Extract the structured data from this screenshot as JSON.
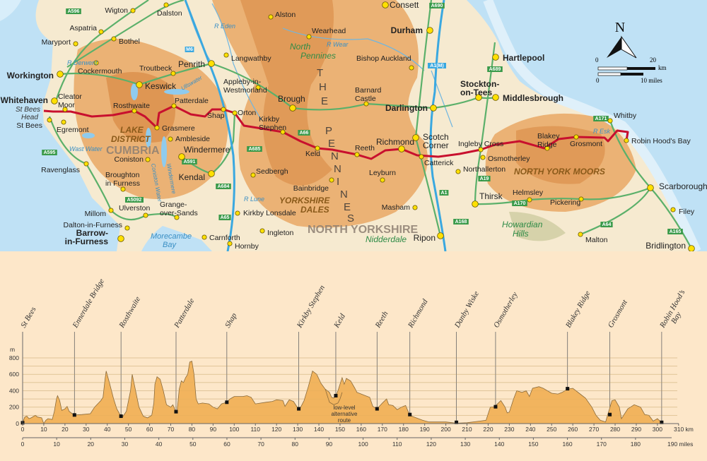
{
  "map": {
    "towns": [
      {
        "name": "Wigton"
      },
      {
        "name": "Dalston"
      },
      {
        "name": "Aspatria"
      },
      {
        "name": "Bothel"
      },
      {
        "name": "Maryport"
      },
      {
        "name": "Cockermouth"
      },
      {
        "name": "Workington",
        "bold": true
      },
      {
        "name": "Troutbeck"
      },
      {
        "name": "Penrith"
      },
      {
        "name": "Langwathby"
      },
      {
        "name": "Keswick"
      },
      {
        "name": "Whitehaven",
        "bold": true
      },
      {
        "name": "Cleator Moor"
      },
      {
        "name": "Rosthwaite"
      },
      {
        "name": "Patterdale"
      },
      {
        "name": "Shap"
      },
      {
        "name": "Orton"
      },
      {
        "name": "St Bees"
      },
      {
        "name": "Egremont"
      },
      {
        "name": "Grasmere"
      },
      {
        "name": "Ambleside"
      },
      {
        "name": "Windermere"
      },
      {
        "name": "Coniston"
      },
      {
        "name": "Ravenglass"
      },
      {
        "name": "Broughton in Furness"
      },
      {
        "name": "Kendal"
      },
      {
        "name": "Millom"
      },
      {
        "name": "Ulverston"
      },
      {
        "name": "Grange-over-Sands"
      },
      {
        "name": "Dalton-in-Furness"
      },
      {
        "name": "Barrow-in-Furness",
        "bold": true
      },
      {
        "name": "Carnforth"
      },
      {
        "name": "Hornby"
      },
      {
        "name": "Alston"
      },
      {
        "name": "Wearhead"
      },
      {
        "name": "Consett"
      },
      {
        "name": "Durham",
        "bold": true
      },
      {
        "name": "Bishop Auckland"
      },
      {
        "name": "Appleby-in-Westmorland"
      },
      {
        "name": "Brough"
      },
      {
        "name": "Barnard Castle"
      },
      {
        "name": "Darlington",
        "bold": true
      },
      {
        "name": "Stockton-on-Tees",
        "bold": true
      },
      {
        "name": "Hartlepool",
        "bold": true
      },
      {
        "name": "Middlesbrough",
        "bold": true
      },
      {
        "name": "Kirkby Stephen"
      },
      {
        "name": "Keld"
      },
      {
        "name": "Reeth"
      },
      {
        "name": "Richmond"
      },
      {
        "name": "Scotch Corner"
      },
      {
        "name": "Catterick"
      },
      {
        "name": "Ingleby Cross"
      },
      {
        "name": "Osmotherley"
      },
      {
        "name": "Northallerton"
      },
      {
        "name": "Leyburn"
      },
      {
        "name": "Sedbergh"
      },
      {
        "name": "Bainbridge"
      },
      {
        "name": "Kirkby Lonsdale"
      },
      {
        "name": "Ingleton"
      },
      {
        "name": "Masham"
      },
      {
        "name": "Ripon"
      },
      {
        "name": "Thirsk"
      },
      {
        "name": "Helmsley"
      },
      {
        "name": "Pickering"
      },
      {
        "name": "Whitby"
      },
      {
        "name": "Robin Hood's Bay"
      },
      {
        "name": "Blakey Ridge"
      },
      {
        "name": "Grosmont"
      },
      {
        "name": "Scarborough"
      },
      {
        "name": "Filey"
      },
      {
        "name": "Malton"
      },
      {
        "name": "Bridlington"
      }
    ],
    "regions": [
      "LAKE DISTRICT",
      "CUMBRIA",
      "North Pennines",
      "THE PENNINES",
      "YORKSHIRE DALES",
      "NORTH YORKSHIRE",
      "Nidderdale",
      "NORTH YORK MOORS",
      "Howardian Hills"
    ],
    "water_labels": [
      "St Bees Head",
      "Morecambe Bay",
      "R Derwent",
      "R Eden",
      "R Wear",
      "R Lune",
      "R Esk",
      "Ullswater",
      "Coniston Water",
      "Windermere",
      "Wast Water"
    ],
    "roads": [
      "M6",
      "A1(M)",
      "A66",
      "A595",
      "A596",
      "A591",
      "A684",
      "A685",
      "A19",
      "A171",
      "A170",
      "A64",
      "A165",
      "A689",
      "A690",
      "A168",
      "A5092",
      "A65",
      "A1"
    ],
    "north_label": "N",
    "scale": {
      "km_zero": "0",
      "km_max": "20",
      "km_unit": "km",
      "mi_zero": "0",
      "mi_max": "10 miles"
    },
    "colors": {
      "route": "#c8102e",
      "sea": "#bfe1f5",
      "land": "#f6ead0",
      "hills": "#e8a45e",
      "roads": "#5bb06a",
      "motorway": "#3aa8e0",
      "towns": "#ffe000"
    }
  },
  "chart_data": {
    "type": "area",
    "ylabel": "m",
    "y_ticks": [
      0,
      200,
      400,
      600,
      800
    ],
    "ylim": [
      0,
      800
    ],
    "x_ticks_km": [
      0,
      10,
      20,
      30,
      40,
      50,
      60,
      70,
      80,
      90,
      100,
      110,
      120,
      130,
      140,
      150,
      160,
      170,
      180,
      190,
      200,
      210,
      220,
      230,
      240,
      250,
      260,
      270,
      280,
      290,
      300,
      310
    ],
    "x_unit_km": "310 km",
    "x_ticks_miles": [
      0,
      10,
      20,
      30,
      40,
      50,
      60,
      70,
      80,
      90,
      100,
      110,
      120,
      130,
      140,
      150,
      160,
      170,
      180
    ],
    "x_unit_miles": "190 miles",
    "grid": true,
    "annotation": "low-level alternative route",
    "profile_km_m": [
      [
        0,
        10
      ],
      [
        1,
        80
      ],
      [
        2,
        90
      ],
      [
        3,
        60
      ],
      [
        4,
        70
      ],
      [
        6,
        100
      ],
      [
        7,
        80
      ],
      [
        9,
        70
      ],
      [
        10,
        0
      ],
      [
        11,
        40
      ],
      [
        12,
        60
      ],
      [
        14,
        50
      ],
      [
        15,
        150
      ],
      [
        16,
        300
      ],
      [
        16.5,
        340
      ],
      [
        17.5,
        280
      ],
      [
        18.5,
        160
      ],
      [
        20,
        180
      ],
      [
        21,
        210
      ],
      [
        22,
        150
      ],
      [
        24,
        110
      ],
      [
        25,
        105
      ],
      [
        28,
        110
      ],
      [
        32,
        120
      ],
      [
        34,
        200
      ],
      [
        37,
        280
      ],
      [
        38,
        320
      ],
      [
        39,
        550
      ],
      [
        39.5,
        640
      ],
      [
        41,
        500
      ],
      [
        43,
        300
      ],
      [
        44.5,
        180
      ],
      [
        46,
        110
      ],
      [
        47.5,
        90
      ],
      [
        49,
        150
      ],
      [
        51,
        400
      ],
      [
        51.8,
        600
      ],
      [
        53,
        450
      ],
      [
        55,
        200
      ],
      [
        57,
        90
      ],
      [
        59,
        70
      ],
      [
        61,
        100
      ],
      [
        62,
        250
      ],
      [
        62.5,
        480
      ],
      [
        63.5,
        570
      ],
      [
        65,
        540
      ],
      [
        66.5,
        400
      ],
      [
        68,
        230
      ],
      [
        70,
        200
      ],
      [
        71,
        230
      ],
      [
        72.5,
        140
      ],
      [
        73,
        150
      ],
      [
        74,
        420
      ],
      [
        75,
        520
      ],
      [
        76,
        500
      ],
      [
        77,
        560
      ],
      [
        78,
        600
      ],
      [
        79,
        750
      ],
      [
        80,
        760
      ],
      [
        81,
        600
      ],
      [
        82,
        300
      ],
      [
        83,
        240
      ],
      [
        85,
        250
      ],
      [
        88,
        240
      ],
      [
        90,
        200
      ],
      [
        92,
        180
      ],
      [
        94,
        240
      ],
      [
        96.5,
        260
      ],
      [
        98,
        300
      ],
      [
        100,
        330
      ],
      [
        104,
        330
      ],
      [
        106,
        340
      ],
      [
        108,
        320
      ],
      [
        110,
        240
      ],
      [
        115,
        260
      ],
      [
        118,
        270
      ],
      [
        120,
        290
      ],
      [
        123,
        280
      ],
      [
        124,
        210
      ],
      [
        126,
        290
      ],
      [
        128,
        270
      ],
      [
        130,
        190
      ],
      [
        131,
        180
      ],
      [
        133,
        280
      ],
      [
        135,
        450
      ],
      [
        137,
        640
      ],
      [
        139,
        600
      ],
      [
        141,
        490
      ],
      [
        143,
        420
      ],
      [
        145,
        380
      ],
      [
        146,
        320
      ],
      [
        147,
        310
      ],
      [
        148,
        340
      ],
      [
        149,
        400
      ],
      [
        151,
        560
      ],
      [
        152,
        480
      ],
      [
        153,
        550
      ],
      [
        155,
        520
      ],
      [
        157,
        430
      ],
      [
        158,
        380
      ],
      [
        160,
        360
      ],
      [
        162,
        340
      ],
      [
        164,
        320
      ],
      [
        165.5,
        210
      ],
      [
        167.5,
        180
      ],
      [
        170,
        250
      ],
      [
        172,
        300
      ],
      [
        173,
        230
      ],
      [
        175,
        220
      ],
      [
        177,
        170
      ],
      [
        179,
        200
      ],
      [
        181,
        220
      ],
      [
        183,
        100
      ],
      [
        185,
        80
      ],
      [
        189,
        40
      ],
      [
        192,
        20
      ],
      [
        200,
        20
      ],
      [
        205,
        5
      ],
      [
        210,
        10
      ],
      [
        216,
        30
      ],
      [
        219,
        40
      ],
      [
        221,
        200
      ],
      [
        223,
        205
      ],
      [
        226,
        280
      ],
      [
        228,
        200
      ],
      [
        229,
        130
      ],
      [
        230,
        140
      ],
      [
        232,
        300
      ],
      [
        233.5,
        400
      ],
      [
        236,
        380
      ],
      [
        238,
        400
      ],
      [
        239.5,
        330
      ],
      [
        241,
        430
      ],
      [
        244,
        450
      ],
      [
        246,
        430
      ],
      [
        250,
        370
      ],
      [
        253,
        360
      ],
      [
        255,
        380
      ],
      [
        257.5,
        420
      ],
      [
        260,
        430
      ],
      [
        263,
        370
      ],
      [
        266,
        310
      ],
      [
        269,
        200
      ],
      [
        271,
        100
      ],
      [
        273,
        40
      ],
      [
        275.5,
        20
      ],
      [
        276.5,
        110
      ],
      [
        278.5,
        280
      ],
      [
        280,
        290
      ],
      [
        282,
        200
      ],
      [
        283,
        60
      ],
      [
        285,
        140
      ],
      [
        286,
        180
      ],
      [
        289,
        230
      ],
      [
        292,
        200
      ],
      [
        294,
        110
      ],
      [
        296,
        100
      ],
      [
        298,
        30
      ],
      [
        300,
        60
      ],
      [
        302,
        10
      ]
    ],
    "alternative_km_m": [
      [
        143,
        420
      ],
      [
        145,
        260
      ],
      [
        147,
        230
      ],
      [
        149,
        250
      ],
      [
        150,
        300
      ],
      [
        151,
        380
      ]
    ],
    "waypoints": [
      {
        "name": "St Bees",
        "km": 0,
        "m": 10
      },
      {
        "name": "Ennerdale Bridge",
        "km": 24.5,
        "m": 105
      },
      {
        "name": "Rosthwaite",
        "km": 46.5,
        "m": 90
      },
      {
        "name": "Patterdale",
        "km": 72.5,
        "m": 145
      },
      {
        "name": "Shap",
        "km": 96.5,
        "m": 260
      },
      {
        "name": "Kirkby Stephen",
        "km": 130.5,
        "m": 180
      },
      {
        "name": "Keld",
        "km": 148,
        "m": 340
      },
      {
        "name": "Reeth",
        "km": 167.5,
        "m": 180
      },
      {
        "name": "Richmond",
        "km": 183,
        "m": 110
      },
      {
        "name": "Danby Wiske",
        "km": 205,
        "m": 15
      },
      {
        "name": "Osmotherley",
        "km": 223.5,
        "m": 205
      },
      {
        "name": "Blakey Ridge",
        "km": 257.5,
        "m": 425
      },
      {
        "name": "Grosmont",
        "km": 277.5,
        "m": 110
      },
      {
        "name": "Robin Hood's Bay",
        "km": 302,
        "m": 15
      }
    ],
    "colors": {
      "fill": "#f2b45e",
      "line": "#8a6a3a",
      "background": "#fde7c9",
      "marker": "#111111"
    }
  }
}
